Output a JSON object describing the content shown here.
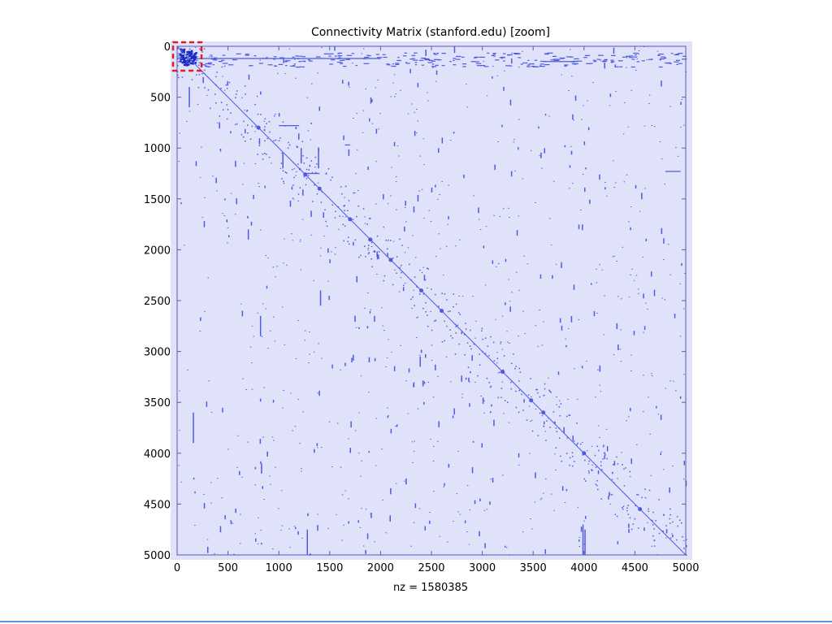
{
  "chart_data": {
    "type": "heatmap",
    "title": "Connectivity Matrix (stanford.edu) [zoom]",
    "xlabel": "nz = 1580385",
    "ylabel": "",
    "xlim": [
      0,
      5000
    ],
    "ylim": [
      0,
      5000
    ],
    "y_axis_reversed": true,
    "x_ticks": [
      "0",
      "500",
      "1000",
      "1500",
      "2000",
      "2500",
      "3000",
      "3500",
      "4000",
      "4500",
      "5000"
    ],
    "y_ticks": [
      "0",
      "500",
      "1000",
      "1500",
      "2000",
      "2500",
      "3000",
      "3500",
      "4000",
      "4500",
      "5000"
    ],
    "grid": false,
    "nonzero_count": 1580385,
    "colors": {
      "background": "#e0e2fa",
      "points": "#4e5be0",
      "dense_block": "#1a2bbf",
      "highlight_box": "#e11d1d",
      "axis": "#5a5ab0"
    },
    "diagonal": {
      "from": [
        0,
        0
      ],
      "to": [
        5000,
        5000
      ]
    },
    "highlight_region": {
      "x": [
        0,
        200
      ],
      "y": [
        0,
        200
      ],
      "label": ""
    },
    "dense_clusters": [
      {
        "cx": 800,
        "cy": 800
      },
      {
        "cx": 1260,
        "cy": 1260
      },
      {
        "cx": 1400,
        "cy": 1400
      },
      {
        "cx": 1700,
        "cy": 1700
      },
      {
        "cx": 1900,
        "cy": 1900
      },
      {
        "cx": 2100,
        "cy": 2100
      },
      {
        "cx": 2400,
        "cy": 2400
      },
      {
        "cx": 2600,
        "cy": 2600
      },
      {
        "cx": 3200,
        "cy": 3200
      },
      {
        "cx": 3480,
        "cy": 3480
      },
      {
        "cx": 3600,
        "cy": 3600
      },
      {
        "cx": 4000,
        "cy": 4000
      },
      {
        "cx": 4550,
        "cy": 4550
      }
    ],
    "vertical_segments": [
      {
        "x": 120,
        "y": [
          400,
          600
        ]
      },
      {
        "x": 160,
        "y": [
          3600,
          3900
        ]
      },
      {
        "x": 700,
        "y": [
          1800,
          1900
        ]
      },
      {
        "x": 820,
        "y": [
          2650,
          2850
        ]
      },
      {
        "x": 830,
        "y": [
          4100,
          4200
        ]
      },
      {
        "x": 1040,
        "y": [
          1050,
          1200
        ]
      },
      {
        "x": 1220,
        "y": [
          1000,
          1150
        ]
      },
      {
        "x": 1280,
        "y": [
          4750,
          5000
        ]
      },
      {
        "x": 1390,
        "y": [
          1000,
          1200
        ]
      },
      {
        "x": 1410,
        "y": [
          2400,
          2550
        ]
      },
      {
        "x": 2390,
        "y": [
          3050,
          3150
        ]
      },
      {
        "x": 3990,
        "y": [
          4700,
          5000
        ]
      },
      {
        "x": 4010,
        "y": [
          4750,
          5000
        ]
      }
    ],
    "horizontal_segments": [
      {
        "y": 120,
        "x": [
          0,
          2000
        ]
      },
      {
        "y": 150,
        "x": [
          3600,
          3900
        ]
      },
      {
        "y": 1250,
        "x": [
          1250,
          1400
        ]
      },
      {
        "y": 1230,
        "x": [
          4800,
          4950
        ]
      },
      {
        "y": 780,
        "x": [
          1000,
          1200
        ]
      },
      {
        "y": 970,
        "x": [
          1650,
          1700
        ]
      }
    ]
  }
}
